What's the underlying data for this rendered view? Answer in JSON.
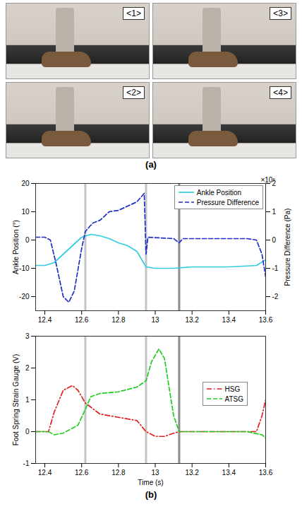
{
  "photos": {
    "caption": "(a)",
    "labels": [
      [
        "<1>",
        "<3>"
      ],
      [
        "<2>",
        "<4>"
      ]
    ]
  },
  "charts_caption": "(b)",
  "chart_data": [
    {
      "type": "line",
      "ylabel": "Ankle Position (°)",
      "y2label": "Pressure Difference (Pa)",
      "y2_exponent": "×10⁶",
      "xlim": [
        12.35,
        13.6
      ],
      "xticks": [
        12.4,
        12.6,
        12.8,
        13,
        13.2,
        13.4,
        13.6
      ],
      "ylim": [
        -25,
        20
      ],
      "yticks": [
        -20,
        -10,
        0,
        10,
        20
      ],
      "y2lim": [
        -2.5,
        2
      ],
      "y2ticks": [
        -2,
        -1,
        0,
        1,
        2
      ],
      "grid": false,
      "legend": "upper right",
      "vlines": [
        {
          "x": 12.62,
          "color": "#c4c4c4"
        },
        {
          "x": 12.95,
          "color": "#c4c4c4"
        },
        {
          "x": 13.13,
          "color": "#8c8c8c"
        }
      ],
      "series": [
        {
          "name": "Ankle Position",
          "color": "#33cce0",
          "line_style": "solid",
          "x": [
            12.35,
            12.4,
            12.45,
            12.5,
            12.55,
            12.6,
            12.65,
            12.7,
            12.75,
            12.8,
            12.85,
            12.9,
            12.95,
            13.0,
            13.1,
            13.2,
            13.4,
            13.55,
            13.6
          ],
          "values": [
            -9,
            -9,
            -8,
            -5,
            -2,
            1,
            2,
            1.5,
            0.5,
            -1,
            -2,
            -4,
            -9.5,
            -10,
            -10,
            -9.5,
            -9.5,
            -9,
            -7
          ]
        },
        {
          "name": "Pressure Difference",
          "color": "#1f2fc8",
          "line_style": "dashed",
          "axis": "y2",
          "x": [
            12.35,
            12.4,
            12.43,
            12.46,
            12.5,
            12.53,
            12.56,
            12.6,
            12.62,
            12.66,
            12.7,
            12.75,
            12.8,
            12.85,
            12.9,
            12.94,
            12.95,
            12.96,
            13.1,
            13.13,
            13.15,
            13.5,
            13.55,
            13.58,
            13.6
          ],
          "values": [
            0.1,
            0.1,
            0,
            -0.8,
            -2.0,
            -2.2,
            -1.8,
            -0.3,
            0.3,
            0.6,
            0.7,
            1.0,
            1.05,
            1.2,
            1.35,
            1.65,
            -0.5,
            0.1,
            0.05,
            -0.1,
            0.05,
            0.05,
            0,
            -0.5,
            -1.3
          ]
        }
      ]
    },
    {
      "type": "line",
      "ylabel": "Foot Spring Strain Gauge (V)",
      "xlabel": "Time (s)",
      "xlim": [
        12.35,
        13.6
      ],
      "xticks": [
        12.4,
        12.6,
        12.8,
        13,
        13.2,
        13.4,
        13.6
      ],
      "ylim": [
        -1,
        3
      ],
      "yticks": [
        -1,
        0,
        1,
        2,
        3
      ],
      "grid": false,
      "legend": "right",
      "vlines": [
        {
          "x": 12.62,
          "color": "#c4c4c4"
        },
        {
          "x": 12.95,
          "color": "#c4c4c4"
        },
        {
          "x": 13.13,
          "color": "#8c8c8c"
        }
      ],
      "series": [
        {
          "name": "HSG",
          "color": "#e02020",
          "line_style": "dashdot",
          "x": [
            12.35,
            12.42,
            12.45,
            12.5,
            12.55,
            12.58,
            12.62,
            12.7,
            12.8,
            12.9,
            12.95,
            13.0,
            13.05,
            13.1,
            13.13,
            13.55,
            13.58,
            13.6
          ],
          "values": [
            0,
            0,
            0.6,
            1.3,
            1.45,
            1.3,
            0.9,
            0.55,
            0.45,
            0.35,
            0,
            -0.15,
            -0.15,
            -0.05,
            0,
            0,
            0.5,
            1.0
          ]
        },
        {
          "name": "ATSG",
          "color": "#22cc22",
          "line_style": "dashed",
          "x": [
            12.35,
            12.42,
            12.45,
            12.5,
            12.58,
            12.62,
            12.65,
            12.7,
            12.8,
            12.9,
            12.95,
            12.98,
            13.02,
            13.05,
            13.1,
            13.13,
            13.5,
            13.58,
            13.6
          ],
          "values": [
            0,
            0,
            -0.1,
            -0.05,
            0.2,
            0.7,
            1.1,
            1.2,
            1.25,
            1.4,
            1.6,
            2.2,
            2.6,
            2.3,
            0.5,
            0,
            0,
            -0.1,
            -0.2
          ]
        }
      ]
    }
  ]
}
